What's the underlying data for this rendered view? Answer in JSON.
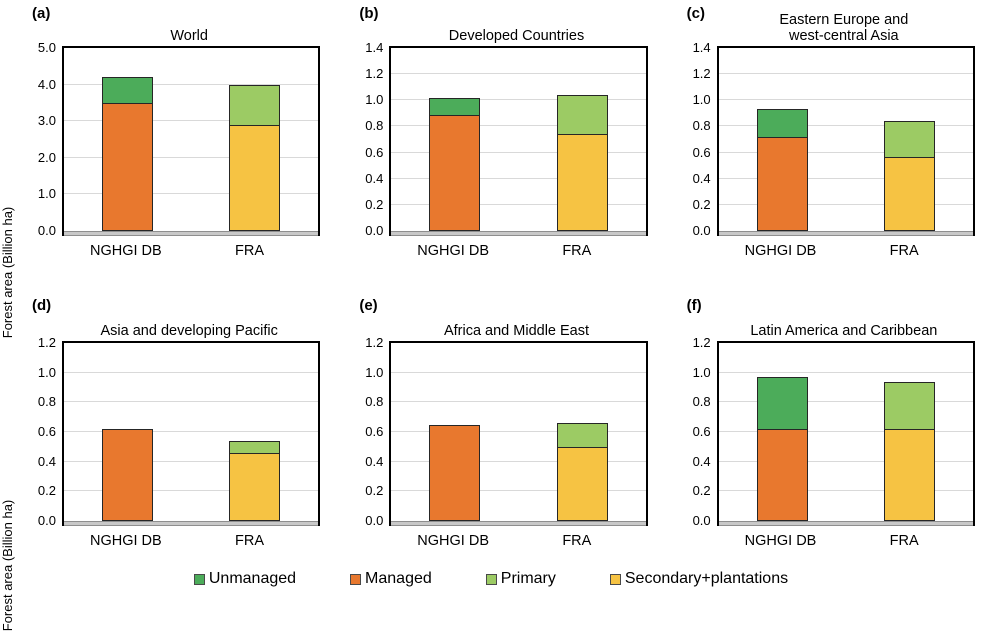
{
  "figure": {
    "ylabel": "Forest area (Billion ha)",
    "categories": [
      "NGHGI DB",
      "FRA"
    ],
    "colors": {
      "managed": "#E8782E",
      "unmanaged": "#4CAC5A",
      "primary": "#9CCB64",
      "secondary": "#F6C343",
      "gridline": "#D9D9D9",
      "baseline_strip": "#C8C8C8",
      "bar_border": "#262626"
    },
    "legend": {
      "items": [
        {
          "label": "Unmanaged",
          "color": "#4CAC5A"
        },
        {
          "label": "Managed",
          "color": "#E8782E"
        },
        {
          "label": "Primary",
          "color": "#9CCB64"
        },
        {
          "label": "Secondary+plantations",
          "color": "#F6C343"
        }
      ]
    }
  },
  "chart_data": [
    {
      "type": "bar",
      "panel_label": "(a)",
      "title": "World",
      "ylabel": "Forest area (Billion ha)",
      "categories": [
        "NGHGI DB",
        "FRA"
      ],
      "ylim": [
        0,
        5.0
      ],
      "yticks": [
        "5.0",
        "4.0",
        "3.0",
        "2.0",
        "1.0",
        "0.0"
      ],
      "stacked": true,
      "bars": [
        {
          "category": "NGHGI DB",
          "segments": [
            {
              "name": "Managed",
              "value": 3.5,
              "color": "managed"
            },
            {
              "name": "Unmanaged",
              "value": 0.7,
              "color": "unmanaged"
            }
          ]
        },
        {
          "category": "FRA",
          "segments": [
            {
              "name": "Secondary+plantations",
              "value": 2.9,
              "color": "secondary"
            },
            {
              "name": "Primary",
              "value": 1.1,
              "color": "primary"
            }
          ]
        }
      ]
    },
    {
      "type": "bar",
      "panel_label": "(b)",
      "title": "Developed Countries",
      "categories": [
        "NGHGI DB",
        "FRA"
      ],
      "ylim": [
        0,
        1.4
      ],
      "yticks": [
        "1.4",
        "1.2",
        "1.0",
        "0.8",
        "0.6",
        "0.4",
        "0.2",
        "0.0"
      ],
      "stacked": true,
      "bars": [
        {
          "category": "NGHGI DB",
          "segments": [
            {
              "name": "Managed",
              "value": 0.89,
              "color": "managed"
            },
            {
              "name": "Unmanaged",
              "value": 0.13,
              "color": "unmanaged"
            }
          ]
        },
        {
          "category": "FRA",
          "segments": [
            {
              "name": "Secondary+plantations",
              "value": 0.74,
              "color": "secondary"
            },
            {
              "name": "Primary",
              "value": 0.3,
              "color": "primary"
            }
          ]
        }
      ]
    },
    {
      "type": "bar",
      "panel_label": "(c)",
      "title": "Eastern Europe and\nwest-central Asia",
      "categories": [
        "NGHGI DB",
        "FRA"
      ],
      "ylim": [
        0,
        1.4
      ],
      "yticks": [
        "1.4",
        "1.2",
        "1.0",
        "0.8",
        "0.6",
        "0.4",
        "0.2",
        "0.0"
      ],
      "stacked": true,
      "bars": [
        {
          "category": "NGHGI DB",
          "segments": [
            {
              "name": "Managed",
              "value": 0.72,
              "color": "managed"
            },
            {
              "name": "Unmanaged",
              "value": 0.21,
              "color": "unmanaged"
            }
          ]
        },
        {
          "category": "FRA",
          "segments": [
            {
              "name": "Secondary+plantations",
              "value": 0.57,
              "color": "secondary"
            },
            {
              "name": "Primary",
              "value": 0.27,
              "color": "primary"
            }
          ]
        }
      ]
    },
    {
      "type": "bar",
      "panel_label": "(d)",
      "title": "Asia and developing Pacific",
      "ylabel": "Forest area (Billion ha)",
      "categories": [
        "NGHGI DB",
        "FRA"
      ],
      "ylim": [
        0,
        1.2
      ],
      "yticks": [
        "1.2",
        "1.0",
        "0.8",
        "0.6",
        "0.4",
        "0.2",
        "0.0"
      ],
      "stacked": true,
      "bars": [
        {
          "category": "NGHGI DB",
          "segments": [
            {
              "name": "Managed",
              "value": 0.62,
              "color": "managed"
            }
          ]
        },
        {
          "category": "FRA",
          "segments": [
            {
              "name": "Secondary+plantations",
              "value": 0.46,
              "color": "secondary"
            },
            {
              "name": "Primary",
              "value": 0.08,
              "color": "primary"
            }
          ]
        }
      ]
    },
    {
      "type": "bar",
      "panel_label": "(e)",
      "title": "Africa and Middle East",
      "categories": [
        "NGHGI DB",
        "FRA"
      ],
      "ylim": [
        0,
        1.2
      ],
      "yticks": [
        "1.2",
        "1.0",
        "0.8",
        "0.6",
        "0.4",
        "0.2",
        "0.0"
      ],
      "stacked": true,
      "bars": [
        {
          "category": "NGHGI DB",
          "segments": [
            {
              "name": "Managed",
              "value": 0.65,
              "color": "managed"
            }
          ]
        },
        {
          "category": "FRA",
          "segments": [
            {
              "name": "Secondary+plantations",
              "value": 0.5,
              "color": "secondary"
            },
            {
              "name": "Primary",
              "value": 0.16,
              "color": "primary"
            }
          ]
        }
      ]
    },
    {
      "type": "bar",
      "panel_label": "(f)",
      "title": "Latin America and Caribbean",
      "categories": [
        "NGHGI DB",
        "FRA"
      ],
      "ylim": [
        0,
        1.2
      ],
      "yticks": [
        "1.2",
        "1.0",
        "0.8",
        "0.6",
        "0.4",
        "0.2",
        "0.0"
      ],
      "stacked": true,
      "bars": [
        {
          "category": "NGHGI DB",
          "segments": [
            {
              "name": "Managed",
              "value": 0.62,
              "color": "managed"
            },
            {
              "name": "Unmanaged",
              "value": 0.35,
              "color": "unmanaged"
            }
          ]
        },
        {
          "category": "FRA",
          "segments": [
            {
              "name": "Secondary+plantations",
              "value": 0.62,
              "color": "secondary"
            },
            {
              "name": "Primary",
              "value": 0.32,
              "color": "primary"
            }
          ]
        }
      ]
    }
  ]
}
